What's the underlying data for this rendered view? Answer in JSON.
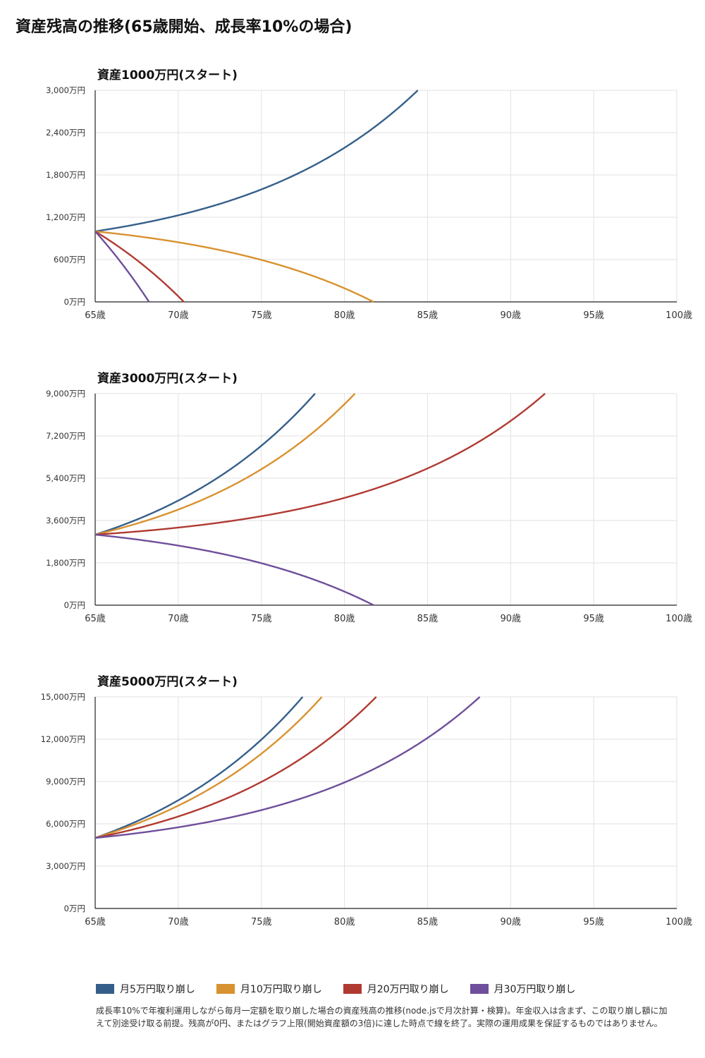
{
  "page": {
    "title": "資産残高の推移(65歳開始、成長率10%の場合)"
  },
  "colors": {
    "s5": "#355f8a",
    "s10": "#d8922f",
    "s20": "#b03a32",
    "s30": "#6f4f9b"
  },
  "legend": [
    {
      "label": "月5万円取り崩し",
      "color": "#355f8a"
    },
    {
      "label": "月10万円取り崩し",
      "color": "#d8922f"
    },
    {
      "label": "月20万円取り崩し",
      "color": "#b03a32"
    },
    {
      "label": "月30万円取り崩し",
      "color": "#6f4f9b"
    }
  ],
  "note": "成長率10%で年複利運用しながら毎月一定額を取り崩した場合の資産残高の推移(node.jsで月次計算・検算)。年金収入は含まず、この取り崩し額に加えて別途受け取る前提。残高が0円、またはグラフ上限(開始資産額の3倍)に達した時点で線を終了。実際の運用成果を保証するものではありません。",
  "chart_data": [
    {
      "type": "line",
      "title": "資産1000万円(スタート)",
      "x_ticks": [
        "65歳",
        "70歳",
        "75歳",
        "80歳",
        "85歳",
        "90歳",
        "95歳",
        "100歳"
      ],
      "y_ticks": [
        "0万円",
        "600万円",
        "1,200万円",
        "1,800万円",
        "2,400万円",
        "3,000万円"
      ],
      "xlim": [
        65,
        100
      ],
      "ylim": [
        0,
        3000
      ],
      "grid": true,
      "start": 1000,
      "growth_rate": 0.1,
      "series": [
        {
          "name": "月5万円取り崩し",
          "monthly": 5,
          "color": "#355f8a"
        },
        {
          "name": "月10万円取り崩し",
          "monthly": 10,
          "color": "#d8922f"
        },
        {
          "name": "月20万円取り崩し",
          "monthly": 20,
          "color": "#b03a32"
        },
        {
          "name": "月30万円取り崩し",
          "monthly": 30,
          "color": "#6f4f9b"
        }
      ]
    },
    {
      "type": "line",
      "title": "資産3000万円(スタート)",
      "x_ticks": [
        "65歳",
        "70歳",
        "75歳",
        "80歳",
        "85歳",
        "90歳",
        "95歳",
        "100歳"
      ],
      "y_ticks": [
        "0万円",
        "1,800万円",
        "3,600万円",
        "5,400万円",
        "7,200万円",
        "9,000万円"
      ],
      "xlim": [
        65,
        100
      ],
      "ylim": [
        0,
        9000
      ],
      "grid": true,
      "start": 3000,
      "growth_rate": 0.1,
      "series": [
        {
          "name": "月5万円取り崩し",
          "monthly": 5,
          "color": "#355f8a"
        },
        {
          "name": "月10万円取り崩し",
          "monthly": 10,
          "color": "#d8922f"
        },
        {
          "name": "月20万円取り崩し",
          "monthly": 20,
          "color": "#b03a32"
        },
        {
          "name": "月30万円取り崩し",
          "monthly": 30,
          "color": "#6f4f9b"
        }
      ]
    },
    {
      "type": "line",
      "title": "資産5000万円(スタート)",
      "x_ticks": [
        "65歳",
        "70歳",
        "75歳",
        "80歳",
        "85歳",
        "90歳",
        "95歳",
        "100歳"
      ],
      "y_ticks": [
        "0万円",
        "3,000万円",
        "6,000万円",
        "9,000万円",
        "12,000万円",
        "15,000万円"
      ],
      "xlim": [
        65,
        100
      ],
      "ylim": [
        0,
        15000
      ],
      "grid": true,
      "start": 5000,
      "growth_rate": 0.1,
      "series": [
        {
          "name": "月5万円取り崩し",
          "monthly": 5,
          "color": "#355f8a"
        },
        {
          "name": "月10万円取り崩し",
          "monthly": 10,
          "color": "#d8922f"
        },
        {
          "name": "月20万円取り崩し",
          "monthly": 20,
          "color": "#b03a32"
        },
        {
          "name": "月30万円取り崩し",
          "monthly": 30,
          "color": "#6f4f9b"
        }
      ]
    }
  ]
}
